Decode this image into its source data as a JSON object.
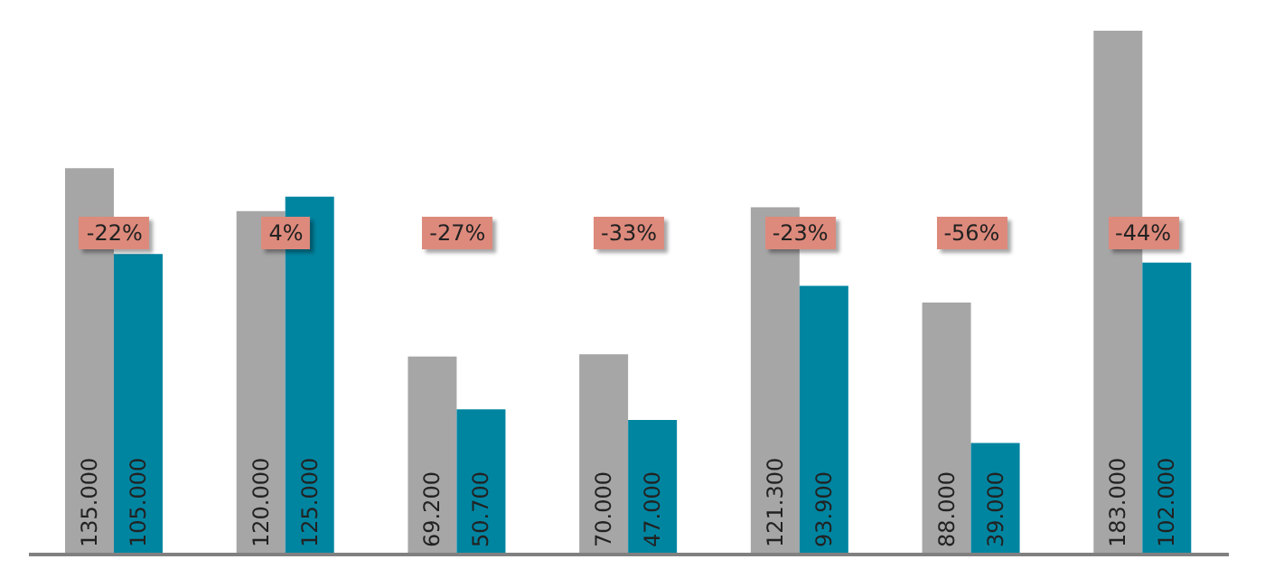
{
  "chart_data": {
    "type": "bar",
    "categories": [
      null,
      null,
      null,
      null,
      null,
      null,
      null
    ],
    "series": [
      {
        "color": "#a6a6a6",
        "values": [
          135000,
          120000,
          69200,
          70000,
          121300,
          88000,
          183000
        ],
        "value_labels": [
          "135.000",
          "120.000",
          "69.200",
          "70.000",
          "121.300",
          "88.000",
          "183.000"
        ]
      },
      {
        "color": "#0085a1",
        "values": [
          105000,
          125000,
          50700,
          47000,
          93900,
          39000,
          102000
        ],
        "value_labels": [
          "105.000",
          "125.000",
          "50.700",
          "47.000",
          "93.900",
          "39.000",
          "102.000"
        ]
      }
    ],
    "annotations": [
      "-22%",
      "4%",
      "-27%",
      "-33%",
      "-23%",
      "-56%",
      "-44%"
    ],
    "grid": false,
    "legend": false
  }
}
